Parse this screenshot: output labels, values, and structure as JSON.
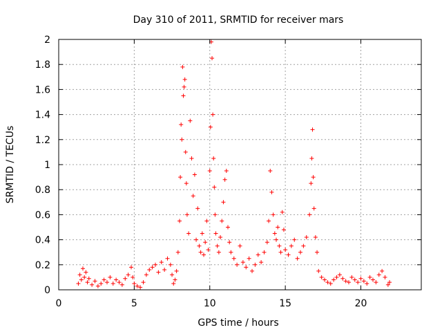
{
  "chart_data": {
    "type": "scatter",
    "title": "Day 310 of 2011, SRMTID for receiver mars",
    "xlabel": "GPS time / hours",
    "ylabel": "SRMTID / TECUs",
    "xlim": [
      0,
      24
    ],
    "ylim": [
      0,
      2
    ],
    "xticks": [
      0,
      5,
      10,
      15,
      20
    ],
    "yticks": [
      0,
      0.2,
      0.4,
      0.6,
      0.8,
      1,
      1.2,
      1.4,
      1.6,
      1.8,
      2
    ],
    "xtick_labels": [
      "0",
      "5",
      "10",
      "15",
      "20"
    ],
    "ytick_labels": [
      "0",
      "0.2",
      "0.4",
      "0.6",
      "0.8",
      "1",
      "1.2",
      "1.4",
      "1.6",
      "1.8",
      "2"
    ],
    "grid": true,
    "marker": "+",
    "color": "#ff0000",
    "series": [
      {
        "name": "SRMTID",
        "x": [
          1.3,
          1.4,
          1.5,
          1.6,
          1.7,
          1.8,
          1.9,
          2.0,
          2.2,
          2.4,
          2.6,
          2.8,
          3.0,
          3.2,
          3.4,
          3.6,
          3.8,
          4.0,
          4.2,
          4.4,
          4.6,
          4.8,
          4.9,
          5.0,
          5.2,
          5.4,
          5.6,
          5.8,
          6.0,
          6.2,
          6.4,
          6.6,
          6.8,
          7.0,
          7.2,
          7.4,
          7.5,
          7.6,
          7.7,
          7.8,
          7.9,
          8.0,
          8.05,
          8.1,
          8.15,
          8.2,
          8.25,
          8.3,
          8.35,
          8.4,
          8.45,
          8.5,
          8.6,
          8.7,
          8.8,
          8.9,
          9.0,
          9.1,
          9.2,
          9.3,
          9.4,
          9.5,
          9.6,
          9.7,
          9.8,
          9.9,
          10.0,
          10.05,
          10.1,
          10.15,
          10.2,
          10.25,
          10.3,
          10.35,
          10.4,
          10.5,
          10.6,
          10.7,
          10.8,
          10.9,
          11.0,
          11.1,
          11.2,
          11.3,
          11.4,
          11.6,
          11.8,
          12.0,
          12.2,
          12.4,
          12.6,
          12.8,
          13.0,
          13.2,
          13.4,
          13.6,
          13.8,
          13.9,
          14.0,
          14.1,
          14.2,
          14.3,
          14.4,
          14.5,
          14.6,
          14.7,
          14.8,
          14.9,
          15.0,
          15.2,
          15.4,
          15.6,
          15.8,
          16.0,
          16.2,
          16.4,
          16.6,
          16.7,
          16.75,
          16.8,
          16.85,
          16.9,
          17.0,
          17.1,
          17.2,
          17.4,
          17.6,
          17.8,
          18.0,
          18.2,
          18.4,
          18.6,
          18.8,
          19.0,
          19.2,
          19.4,
          19.6,
          19.8,
          20.0,
          20.2,
          20.4,
          20.6,
          20.8,
          21.0,
          21.2,
          21.4,
          21.6,
          21.8,
          21.9
        ],
        "y": [
          0.05,
          0.12,
          0.08,
          0.17,
          0.1,
          0.14,
          0.06,
          0.09,
          0.04,
          0.07,
          0.03,
          0.05,
          0.08,
          0.06,
          0.1,
          0.05,
          0.08,
          0.06,
          0.04,
          0.09,
          0.12,
          0.18,
          0.1,
          0.05,
          0.03,
          0.02,
          0.06,
          0.12,
          0.16,
          0.18,
          0.2,
          0.14,
          0.22,
          0.16,
          0.25,
          0.2,
          0.12,
          0.05,
          0.08,
          0.15,
          0.3,
          0.55,
          0.9,
          1.32,
          1.2,
          1.78,
          1.55,
          1.62,
          1.68,
          1.1,
          0.85,
          0.6,
          0.45,
          1.35,
          1.05,
          0.75,
          0.92,
          0.4,
          0.65,
          0.35,
          0.3,
          0.45,
          0.28,
          0.38,
          0.55,
          0.32,
          0.95,
          1.3,
          1.98,
          1.85,
          1.4,
          1.05,
          0.82,
          0.6,
          0.45,
          0.35,
          0.3,
          0.42,
          0.55,
          0.7,
          0.88,
          0.95,
          0.5,
          0.38,
          0.3,
          0.25,
          0.2,
          0.35,
          0.22,
          0.18,
          0.25,
          0.15,
          0.2,
          0.28,
          0.22,
          0.3,
          0.38,
          0.55,
          0.95,
          0.78,
          0.6,
          0.45,
          0.4,
          0.5,
          0.35,
          0.3,
          0.62,
          0.48,
          0.32,
          0.28,
          0.35,
          0.4,
          0.25,
          0.3,
          0.35,
          0.42,
          0.6,
          0.85,
          1.05,
          1.28,
          0.9,
          0.65,
          0.42,
          0.3,
          0.15,
          0.1,
          0.08,
          0.06,
          0.05,
          0.08,
          0.1,
          0.12,
          0.09,
          0.07,
          0.06,
          0.1,
          0.08,
          0.06,
          0.09,
          0.07,
          0.05,
          0.1,
          0.08,
          0.06,
          0.12,
          0.15,
          0.1,
          0.04,
          0.06
        ]
      }
    ]
  }
}
